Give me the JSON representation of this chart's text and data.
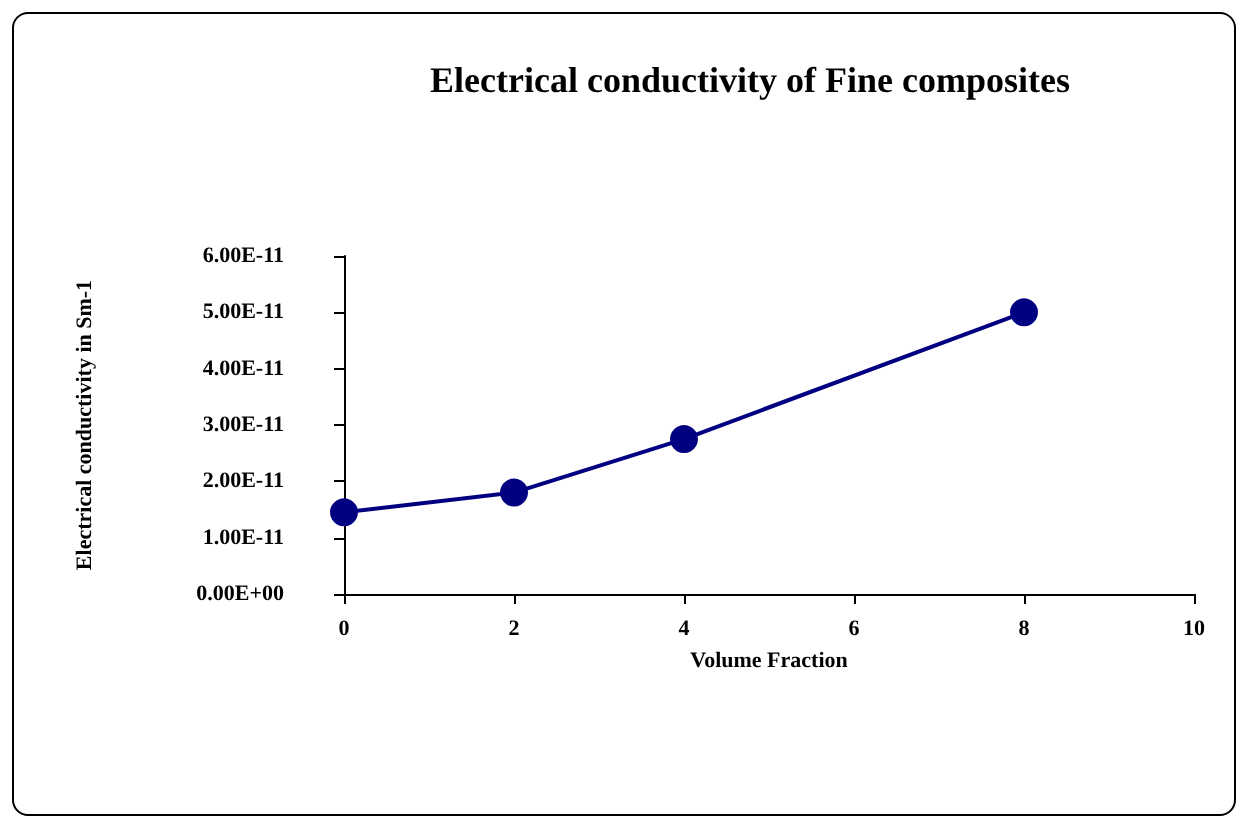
{
  "chart_data": {
    "type": "line",
    "title": "Electrical conductivity of Fine composites",
    "xlabel": "Volume Fraction",
    "ylabel": "Electrical conductivity in Sm-1",
    "x": [
      0,
      2,
      4,
      8
    ],
    "series": [
      {
        "color": "#000080",
        "values": [
          1.45e-11,
          1.8e-11,
          2.75e-11,
          5e-11
        ]
      }
    ],
    "xlim": [
      0,
      10
    ],
    "xticks": [
      0,
      2,
      4,
      6,
      8,
      10
    ],
    "ylim": [
      0,
      6e-11
    ],
    "yticks": [
      {
        "value": 0,
        "label": "0.00E+00"
      },
      {
        "value": 1e-11,
        "label": "1.00E-11"
      },
      {
        "value": 2e-11,
        "label": "2.00E-11"
      },
      {
        "value": 3e-11,
        "label": "3.00E-11"
      },
      {
        "value": 4e-11,
        "label": "4.00E-11"
      },
      {
        "value": 5e-11,
        "label": "5.00E-11"
      },
      {
        "value": 6e-11,
        "label": "6.00E-11"
      }
    ],
    "grid": false,
    "marker": "circle",
    "line_style": "solid"
  }
}
